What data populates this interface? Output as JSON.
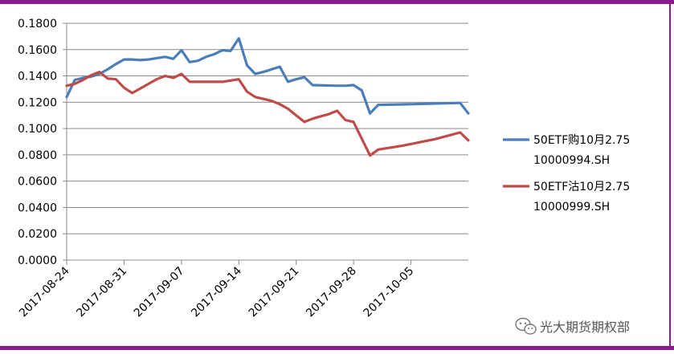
{
  "watermark": {
    "text": "光大期货期权部"
  },
  "chart_data": {
    "type": "line",
    "title": "",
    "xlabel": "",
    "ylabel": "",
    "ylim": [
      0,
      0.18
    ],
    "yticks": [
      "0.0000",
      "0.0200",
      "0.0400",
      "0.0600",
      "0.0800",
      "0.1000",
      "0.1200",
      "0.1400",
      "0.1600",
      "0.1800"
    ],
    "xlim": [
      "2017-08-24",
      "2017-10-12"
    ],
    "xticks": [
      "2017-08-24",
      "2017-08-31",
      "2017-09-07",
      "2017-09-14",
      "2017-09-21",
      "2017-09-28",
      "2017-10-05"
    ],
    "grid": "horizontal",
    "legend_position": "right",
    "series": [
      {
        "name": "50ETF购10月2.75 10000994.SH",
        "legend_lines": [
          "50ETF购10月2.75",
          "10000994.SH"
        ],
        "color": "#4a7ebb",
        "points": [
          [
            "2017-08-24",
            0.124
          ],
          [
            "2017-08-25",
            0.137
          ],
          [
            "2017-08-26",
            0.1385
          ],
          [
            "2017-08-27",
            0.1395
          ],
          [
            "2017-08-28",
            0.1415
          ],
          [
            "2017-08-29",
            0.145
          ],
          [
            "2017-08-30",
            0.149
          ],
          [
            "2017-08-31",
            0.1525
          ],
          [
            "2017-09-01",
            0.1525
          ],
          [
            "2017-09-02",
            0.152
          ],
          [
            "2017-09-03",
            0.1525
          ],
          [
            "2017-09-04",
            0.1535
          ],
          [
            "2017-09-05",
            0.1545
          ],
          [
            "2017-09-06",
            0.153
          ],
          [
            "2017-09-07",
            0.1595
          ],
          [
            "2017-09-08",
            0.1505
          ],
          [
            "2017-09-09",
            0.1515
          ],
          [
            "2017-09-10",
            0.1545
          ],
          [
            "2017-09-11",
            0.1565
          ],
          [
            "2017-09-12",
            0.1595
          ],
          [
            "2017-09-13",
            0.159
          ],
          [
            "2017-09-14",
            0.1685
          ],
          [
            "2017-09-15",
            0.148
          ],
          [
            "2017-09-16",
            0.1415
          ],
          [
            "2017-09-17",
            0.143
          ],
          [
            "2017-09-18",
            0.145
          ],
          [
            "2017-09-19",
            0.147
          ],
          [
            "2017-09-20",
            0.1355
          ],
          [
            "2017-09-21",
            0.1375
          ],
          [
            "2017-09-22",
            0.139
          ],
          [
            "2017-09-23",
            0.133
          ],
          [
            "2017-09-26",
            0.1325
          ],
          [
            "2017-09-27",
            0.1325
          ],
          [
            "2017-09-28",
            0.133
          ],
          [
            "2017-09-29",
            0.129
          ],
          [
            "2017-09-30",
            0.1115
          ],
          [
            "2017-10-01",
            0.118
          ],
          [
            "2017-10-05",
            0.1185
          ],
          [
            "2017-10-11",
            0.1195
          ],
          [
            "2017-10-12",
            0.1115
          ]
        ]
      },
      {
        "name": "50ETF沽10月2.75 10000999.SH",
        "legend_lines": [
          "50ETF沽10月2.75",
          "10000999.SH"
        ],
        "color": "#be4b48",
        "points": [
          [
            "2017-08-24",
            0.1325
          ],
          [
            "2017-08-25",
            0.134
          ],
          [
            "2017-08-26",
            0.137
          ],
          [
            "2017-08-27",
            0.1405
          ],
          [
            "2017-08-28",
            0.143
          ],
          [
            "2017-08-29",
            0.138
          ],
          [
            "2017-08-30",
            0.1375
          ],
          [
            "2017-08-31",
            0.131
          ],
          [
            "2017-09-01",
            0.127
          ],
          [
            "2017-09-02",
            0.1305
          ],
          [
            "2017-09-03",
            0.134
          ],
          [
            "2017-09-04",
            0.1375
          ],
          [
            "2017-09-05",
            0.14
          ],
          [
            "2017-09-06",
            0.1385
          ],
          [
            "2017-09-07",
            0.1415
          ],
          [
            "2017-09-08",
            0.1355
          ],
          [
            "2017-09-12",
            0.1355
          ],
          [
            "2017-09-13",
            0.1365
          ],
          [
            "2017-09-14",
            0.1375
          ],
          [
            "2017-09-15",
            0.128
          ],
          [
            "2017-09-16",
            0.124
          ],
          [
            "2017-09-17",
            0.1225
          ],
          [
            "2017-09-18",
            0.121
          ],
          [
            "2017-09-19",
            0.1185
          ],
          [
            "2017-09-20",
            0.115
          ],
          [
            "2017-09-21",
            0.11
          ],
          [
            "2017-09-22",
            0.105
          ],
          [
            "2017-09-23",
            0.1075
          ],
          [
            "2017-09-25",
            0.111
          ],
          [
            "2017-09-26",
            0.1135
          ],
          [
            "2017-09-27",
            0.1065
          ],
          [
            "2017-09-28",
            0.105
          ],
          [
            "2017-09-30",
            0.0795
          ],
          [
            "2017-10-01",
            0.084
          ],
          [
            "2017-10-04",
            0.087
          ],
          [
            "2017-10-08",
            0.092
          ],
          [
            "2017-10-11",
            0.097
          ],
          [
            "2017-10-12",
            0.091
          ]
        ]
      }
    ]
  }
}
